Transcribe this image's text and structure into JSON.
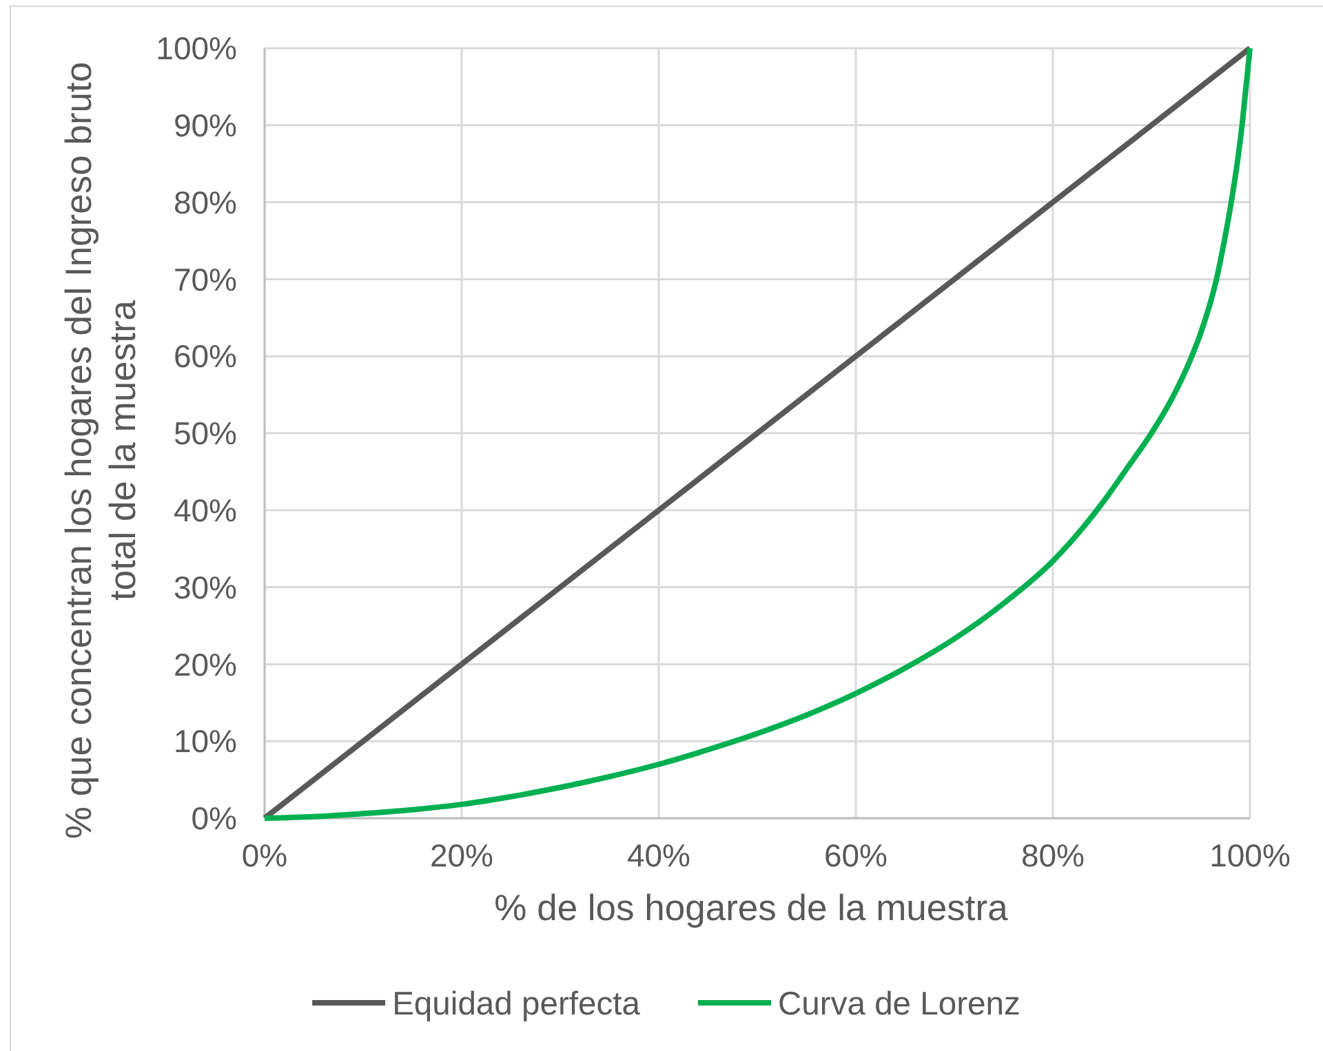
{
  "chart_data": {
    "type": "line",
    "xlabel": "% de los hogares de la muestra",
    "ylabel": "% que concentran los hogares del Ingreso bruto\ntotal de la muestra",
    "xlim": [
      0,
      100
    ],
    "ylim": [
      0,
      100
    ],
    "xticks": [
      {
        "value": 0,
        "label": "0%"
      },
      {
        "value": 20,
        "label": "20%"
      },
      {
        "value": 40,
        "label": "40%"
      },
      {
        "value": 60,
        "label": "60%"
      },
      {
        "value": 80,
        "label": "80%"
      },
      {
        "value": 100,
        "label": "100%"
      }
    ],
    "yticks": [
      {
        "value": 0,
        "label": "0%"
      },
      {
        "value": 10,
        "label": "10%"
      },
      {
        "value": 20,
        "label": "20%"
      },
      {
        "value": 30,
        "label": "30%"
      },
      {
        "value": 40,
        "label": "40%"
      },
      {
        "value": 50,
        "label": "50%"
      },
      {
        "value": 60,
        "label": "60%"
      },
      {
        "value": 70,
        "label": "70%"
      },
      {
        "value": 80,
        "label": "80%"
      },
      {
        "value": 90,
        "label": "90%"
      },
      {
        "value": 100,
        "label": "100%"
      }
    ],
    "grid": true,
    "legend": "bottom",
    "marker": "none",
    "line_style": "solid",
    "series": [
      {
        "name": "Equidad perfecta",
        "color": "#595959",
        "x": [
          0,
          100
        ],
        "values": [
          0,
          100
        ]
      },
      {
        "name": "Curva de Lorenz",
        "color": "#00b050",
        "x": [
          0,
          5,
          10,
          15,
          20,
          25,
          30,
          35,
          40,
          45,
          50,
          55,
          60,
          65,
          70,
          75,
          80,
          85,
          87.5,
          90,
          92,
          94.1,
          95,
          96.6,
          97.4,
          98.1,
          98.7,
          99.2,
          99.6,
          100
        ],
        "values": [
          0,
          0.2,
          0.6,
          1.1,
          1.8,
          2.8,
          4,
          5.4,
          7,
          8.9,
          11,
          13.4,
          16.2,
          19.5,
          23.3,
          27.9,
          33.4,
          40.9,
          45.4,
          50,
          54.3,
          60,
          63,
          70,
          75,
          80,
          85,
          90,
          95,
          100
        ]
      }
    ]
  }
}
